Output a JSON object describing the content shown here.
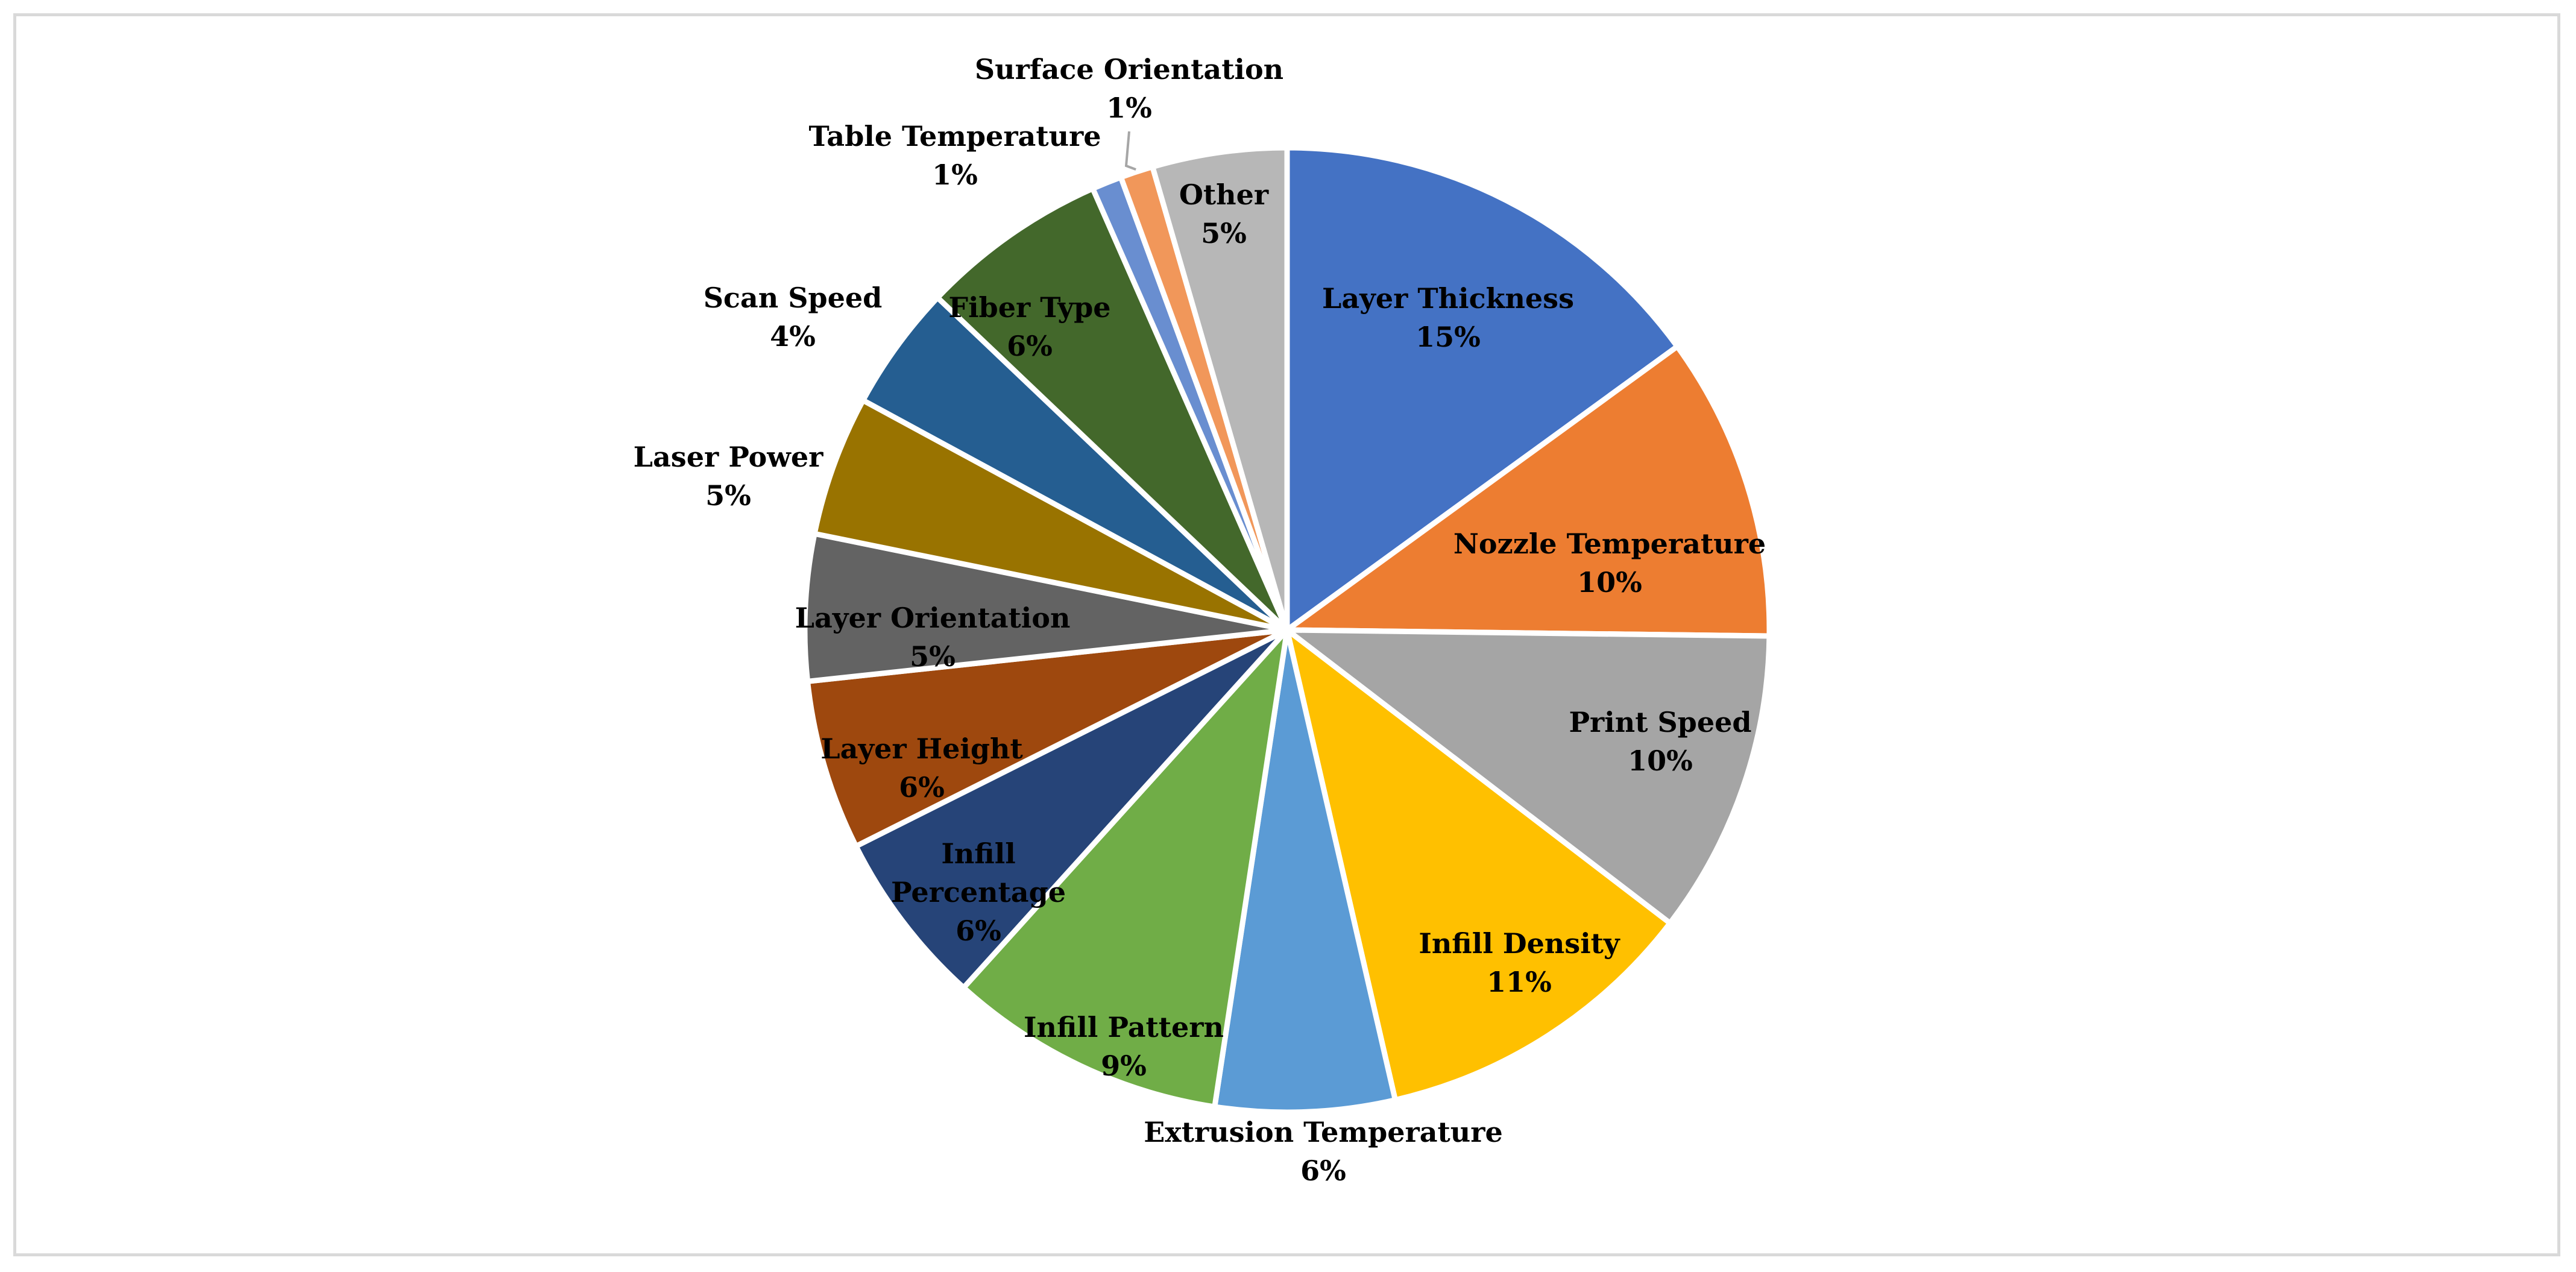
{
  "chart_data": {
    "type": "pie",
    "title": "",
    "label_format": "{category}\n{percent}",
    "start_angle_deg": 0,
    "direction": "clockwise",
    "legend": "none",
    "slices": [
      {
        "category": "Layer Thickness",
        "label_lines": [
          "Layer Thickness"
        ],
        "percent": "15%",
        "value": 15.0,
        "color": "#4472C4",
        "label_color": "#000000",
        "label_pos": "inside"
      },
      {
        "category": "Nozzle Temperature",
        "label_lines": [
          "Nozzle Temperature"
        ],
        "percent": "10%",
        "value": 10.2,
        "color": "#ED7D31",
        "label_color": "#000000",
        "label_pos": "inside"
      },
      {
        "category": "Print Speed",
        "label_lines": [
          "Print Speed"
        ],
        "percent": "10%",
        "value": 10.2,
        "color": "#A5A5A5",
        "label_color": "#000000",
        "label_pos": "inside"
      },
      {
        "category": "Infill Density",
        "label_lines": [
          "Infill Density"
        ],
        "percent": "11%",
        "value": 11.0,
        "color": "#FFC000",
        "label_color": "#000000",
        "label_pos": "inside"
      },
      {
        "category": "Extrusion Temperature",
        "label_lines": [
          "Extrusion Temperature"
        ],
        "percent": "6%",
        "value": 6.0,
        "color": "#5B9BD5",
        "label_color": "#000000",
        "label_pos": "outside"
      },
      {
        "category": "Infill Pattern",
        "label_lines": [
          "Infill Pattern"
        ],
        "percent": "9%",
        "value": 9.3,
        "color": "#70AD47",
        "label_color": "#000000",
        "label_pos": "inside"
      },
      {
        "category": "Infill Percentage",
        "label_lines": [
          "Infill",
          "Percentage"
        ],
        "percent": "6%",
        "value": 5.9,
        "color": "#264478",
        "label_color": "#000000",
        "label_pos": "inside"
      },
      {
        "category": "Layer Height",
        "label_lines": [
          "Layer Height"
        ],
        "percent": "6%",
        "value": 5.7,
        "color": "#9E480E",
        "label_color": "#000000",
        "label_pos": "inside"
      },
      {
        "category": "Layer Orientation",
        "label_lines": [
          "Layer Orientation"
        ],
        "percent": "5%",
        "value": 4.9,
        "color": "#636363",
        "label_color": "#000000",
        "label_pos": "inside"
      },
      {
        "category": "Laser Power",
        "label_lines": [
          "Laser Power"
        ],
        "percent": "5%",
        "value": 4.7,
        "color": "#997300",
        "label_color": "#000000",
        "label_pos": "outside"
      },
      {
        "category": "Scan Speed",
        "label_lines": [
          "Scan Speed"
        ],
        "percent": "4%",
        "value": 4.2,
        "color": "#255E91",
        "label_color": "#000000",
        "label_pos": "outside"
      },
      {
        "category": "Fiber Type",
        "label_lines": [
          "Fiber Type"
        ],
        "percent": "6%",
        "value": 6.3,
        "color": "#43682B",
        "label_color": "#000000",
        "label_pos": "inside"
      },
      {
        "category": "Table Temperature",
        "label_lines": [
          "Table Temperature"
        ],
        "percent": "1%",
        "value": 1.0,
        "color": "#698ED0",
        "label_color": "#000000",
        "label_pos": "outside"
      },
      {
        "category": "Surface Orientation",
        "label_lines": [
          "Surface Orientation"
        ],
        "percent": "1%",
        "value": 1.1,
        "color": "#F1975A",
        "label_color": "#000000",
        "label_pos": "outside-leader"
      },
      {
        "category": "Other",
        "label_lines": [
          "Other"
        ],
        "percent": "5%",
        "value": 4.5,
        "color": "#B7B7B7",
        "label_color": "#000000",
        "label_pos": "inside"
      }
    ]
  }
}
